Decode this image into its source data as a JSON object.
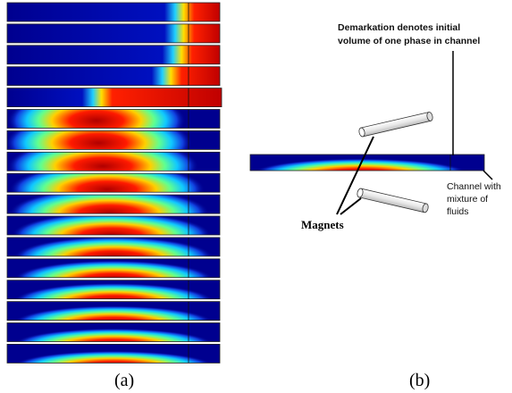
{
  "panels": [
    {
      "label": "(a)"
    },
    {
      "label": "(b)",
      "demarkation_note": [
        "Demarkation denotes initial",
        "volume of one phase in channel"
      ],
      "channel_note": [
        "Channel with",
        "mixture of",
        "fluids"
      ],
      "magnets_label": "Magnets"
    }
  ]
}
